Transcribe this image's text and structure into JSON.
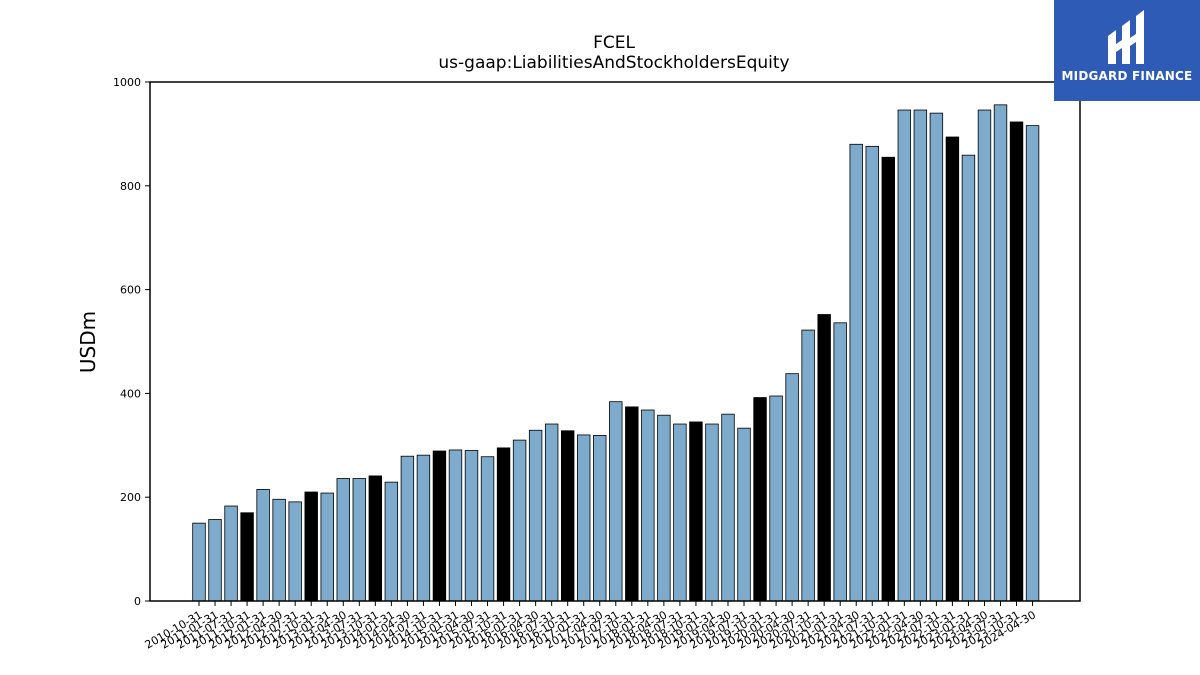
{
  "brand": {
    "name": "MIDGARD FINANCE",
    "mark_color": "#ffffff",
    "bg_color": "#2d5bb5",
    "icon": "midgard-logo-icon"
  },
  "chart_data": {
    "type": "bar",
    "title": "FCEL",
    "subtitle": "us-gaap:LiabilitiesAndStockholdersEquity",
    "xlabel": "",
    "ylabel": "USDm",
    "ylim": [
      0,
      1000
    ],
    "yticks": [
      0,
      200,
      400,
      600,
      800,
      1000
    ],
    "grid": false,
    "colors": {
      "regular": "#7eaacc",
      "annual": "#000000",
      "edge": "#000000"
    },
    "bars": [
      {
        "date": "2010-10-31",
        "value": 150,
        "annual": false
      },
      {
        "date": "2011-01-31",
        "value": 157,
        "annual": false
      },
      {
        "date": "2011-07-31",
        "value": 183,
        "annual": false
      },
      {
        "date": "2011-10-31",
        "value": 170,
        "annual": true
      },
      {
        "date": "2012-01-31",
        "value": 215,
        "annual": false
      },
      {
        "date": "2012-04-30",
        "value": 196,
        "annual": false
      },
      {
        "date": "2012-07-31",
        "value": 191,
        "annual": false
      },
      {
        "date": "2012-10-31",
        "value": 210,
        "annual": true
      },
      {
        "date": "2013-01-31",
        "value": 208,
        "annual": false
      },
      {
        "date": "2013-04-30",
        "value": 236,
        "annual": false
      },
      {
        "date": "2013-07-31",
        "value": 236,
        "annual": false
      },
      {
        "date": "2013-10-31",
        "value": 241,
        "annual": true
      },
      {
        "date": "2014-01-31",
        "value": 229,
        "annual": false
      },
      {
        "date": "2014-04-30",
        "value": 279,
        "annual": false
      },
      {
        "date": "2014-07-31",
        "value": 281,
        "annual": false
      },
      {
        "date": "2014-10-31",
        "value": 289,
        "annual": true
      },
      {
        "date": "2015-01-31",
        "value": 291,
        "annual": false
      },
      {
        "date": "2015-04-30",
        "value": 290,
        "annual": false
      },
      {
        "date": "2015-07-31",
        "value": 278,
        "annual": false
      },
      {
        "date": "2015-10-31",
        "value": 295,
        "annual": true
      },
      {
        "date": "2016-01-31",
        "value": 310,
        "annual": false
      },
      {
        "date": "2016-04-30",
        "value": 329,
        "annual": false
      },
      {
        "date": "2016-07-31",
        "value": 341,
        "annual": false
      },
      {
        "date": "2016-10-31",
        "value": 328,
        "annual": true
      },
      {
        "date": "2017-01-31",
        "value": 320,
        "annual": false
      },
      {
        "date": "2017-04-30",
        "value": 319,
        "annual": false
      },
      {
        "date": "2017-07-31",
        "value": 384,
        "annual": false
      },
      {
        "date": "2017-10-31",
        "value": 374,
        "annual": true
      },
      {
        "date": "2018-01-31",
        "value": 368,
        "annual": false
      },
      {
        "date": "2018-04-30",
        "value": 358,
        "annual": false
      },
      {
        "date": "2018-07-31",
        "value": 341,
        "annual": false
      },
      {
        "date": "2018-10-31",
        "value": 345,
        "annual": true
      },
      {
        "date": "2019-01-31",
        "value": 341,
        "annual": false
      },
      {
        "date": "2019-04-30",
        "value": 360,
        "annual": false
      },
      {
        "date": "2019-07-31",
        "value": 333,
        "annual": false
      },
      {
        "date": "2019-10-31",
        "value": 392,
        "annual": true
      },
      {
        "date": "2020-01-31",
        "value": 395,
        "annual": false
      },
      {
        "date": "2020-04-30",
        "value": 438,
        "annual": false
      },
      {
        "date": "2020-07-31",
        "value": 522,
        "annual": false
      },
      {
        "date": "2020-10-31",
        "value": 552,
        "annual": true
      },
      {
        "date": "2021-01-31",
        "value": 536,
        "annual": false
      },
      {
        "date": "2021-04-30",
        "value": 880,
        "annual": false
      },
      {
        "date": "2021-07-31",
        "value": 876,
        "annual": false
      },
      {
        "date": "2021-10-31",
        "value": 855,
        "annual": true
      },
      {
        "date": "2022-01-31",
        "value": 946,
        "annual": false
      },
      {
        "date": "2022-04-30",
        "value": 946,
        "annual": false
      },
      {
        "date": "2022-07-31",
        "value": 940,
        "annual": false
      },
      {
        "date": "2022-10-31",
        "value": 894,
        "annual": true
      },
      {
        "date": "2023-01-31",
        "value": 859,
        "annual": false
      },
      {
        "date": "2023-04-30",
        "value": 946,
        "annual": false
      },
      {
        "date": "2023-07-31",
        "value": 956,
        "annual": false
      },
      {
        "date": "2023-10-31",
        "value": 923,
        "annual": true
      },
      {
        "date": "2024-04-30",
        "value": 916,
        "annual": false
      }
    ]
  }
}
